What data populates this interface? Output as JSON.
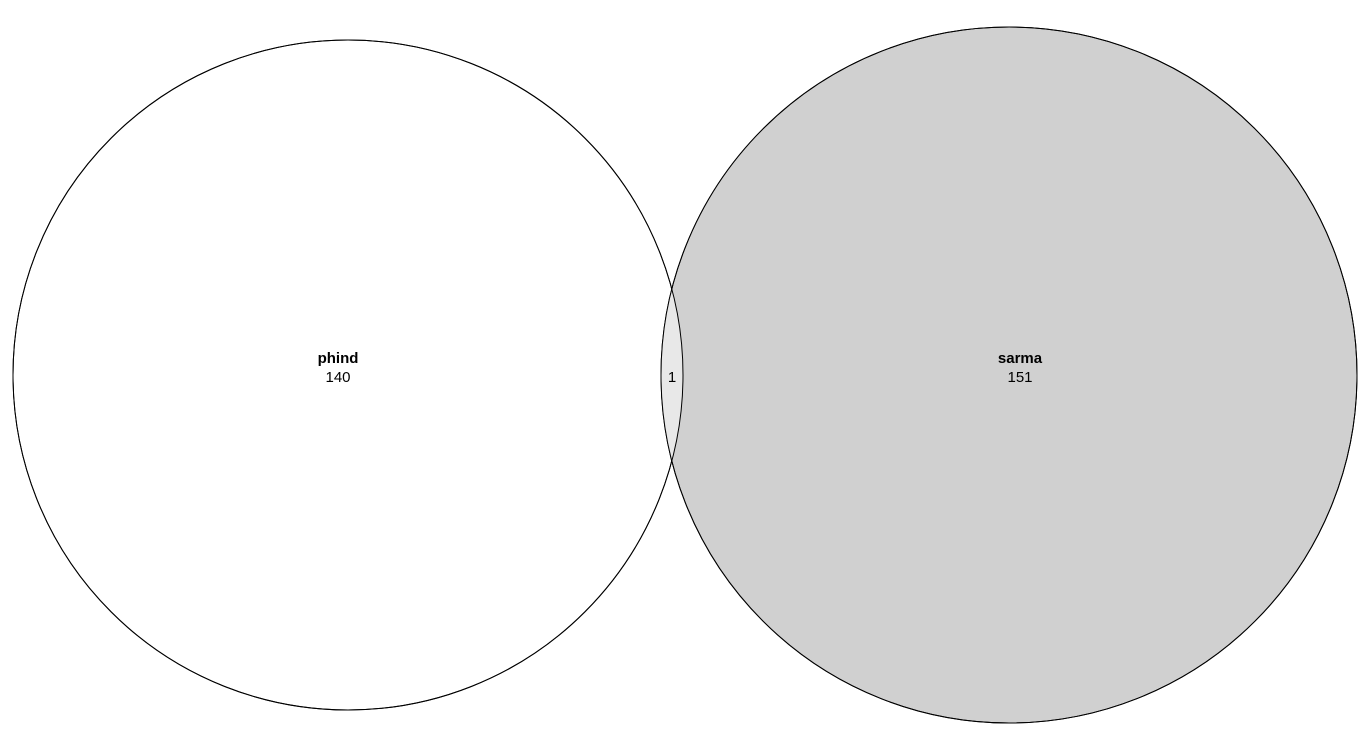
{
  "chart_data": {
    "type": "venn",
    "sets": [
      {
        "name": "phind",
        "count": 140,
        "fill": "#ffffff"
      },
      {
        "name": "sarma",
        "count": 151,
        "fill": "#d0d0d0"
      }
    ],
    "intersection": {
      "count": 1,
      "fill": "#e8e8e8"
    },
    "stroke": "#000000"
  }
}
